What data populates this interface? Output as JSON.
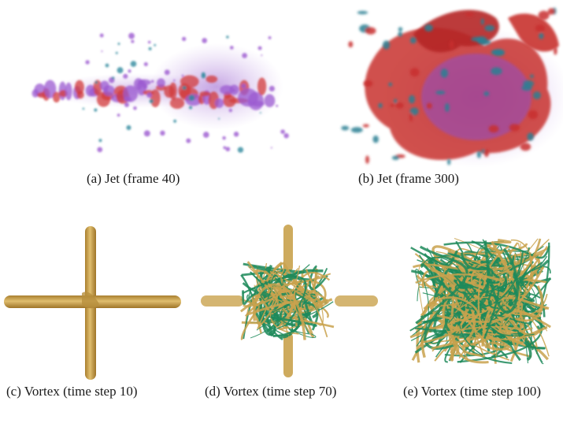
{
  "figure": {
    "panels": [
      {
        "id": "a",
        "caption": "(a) Jet (frame 40)",
        "colors": [
          "#d23a3a",
          "#9b59d0",
          "#2f8a9e"
        ]
      },
      {
        "id": "b",
        "caption": "(b) Jet (frame 300)",
        "colors": [
          "#c8302f",
          "#8e4fc9",
          "#2a7f93"
        ]
      },
      {
        "id": "c",
        "caption": "(c) Vortex (time step 10)",
        "colors": [
          "#c9a24d"
        ]
      },
      {
        "id": "d",
        "caption": "(d) Vortex (time step 70)",
        "colors": [
          "#c9a24d",
          "#1d8a5a"
        ]
      },
      {
        "id": "e",
        "caption": "(e) Vortex (time step 100)",
        "colors": [
          "#c9a24d",
          "#1d8a5a"
        ]
      }
    ]
  }
}
